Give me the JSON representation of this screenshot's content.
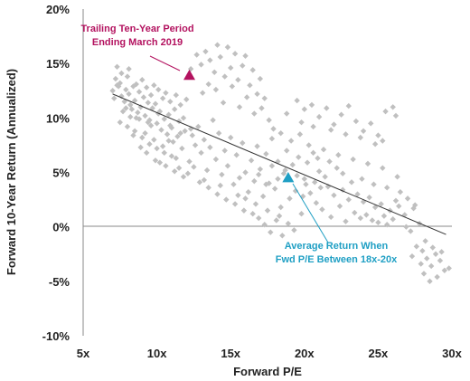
{
  "chart_data": {
    "type": "scatter",
    "xlabel": "Forward P/E",
    "ylabel": "Forward 10-Year Return (Annualized)",
    "xlim": [
      5,
      30
    ],
    "ylim": [
      -10,
      20
    ],
    "x_ticks": [
      5,
      10,
      15,
      20,
      25,
      30
    ],
    "x_tick_labels": [
      "5x",
      "10x",
      "15x",
      "20x",
      "25x",
      "30x"
    ],
    "y_ticks": [
      -10,
      -5,
      0,
      5,
      10,
      15,
      20
    ],
    "y_tick_labels": [
      "-10%",
      "-5%",
      "0%",
      "5%",
      "10%",
      "15%",
      "20%"
    ],
    "scatter_color": "#c0c0c0",
    "trendline": {
      "x": [
        7,
        29.6
      ],
      "y": [
        12.2,
        -0.7
      ],
      "color": "#333333"
    },
    "points": [
      [
        7.0,
        12.5
      ],
      [
        7.1,
        11.8
      ],
      [
        7.2,
        13.6
      ],
      [
        7.3,
        14.7
      ],
      [
        7.4,
        12.9
      ],
      [
        7.5,
        13.2
      ],
      [
        7.6,
        12.0
      ],
      [
        7.8,
        11.5
      ],
      [
        7.9,
        12.6
      ],
      [
        8.0,
        13.8
      ],
      [
        8.1,
        12.2
      ],
      [
        8.2,
        11.2
      ],
      [
        8.3,
        10.8
      ],
      [
        8.4,
        12.9
      ],
      [
        8.5,
        11.6
      ],
      [
        8.6,
        13.1
      ],
      [
        8.7,
        10.5
      ],
      [
        8.8,
        12.4
      ],
      [
        8.9,
        11.0
      ],
      [
        9.0,
        13.5
      ],
      [
        9.1,
        11.9
      ],
      [
        9.2,
        10.2
      ],
      [
        9.3,
        12.8
      ],
      [
        9.4,
        11.4
      ],
      [
        9.5,
        9.8
      ],
      [
        9.6,
        12.1
      ],
      [
        9.7,
        10.9
      ],
      [
        9.8,
        13.0
      ],
      [
        9.9,
        11.3
      ],
      [
        10.0,
        9.5
      ],
      [
        10.1,
        12.6
      ],
      [
        10.2,
        10.6
      ],
      [
        10.3,
        8.9
      ],
      [
        10.4,
        11.8
      ],
      [
        10.5,
        9.9
      ],
      [
        10.6,
        12.3
      ],
      [
        10.7,
        8.5
      ],
      [
        10.8,
        10.3
      ],
      [
        10.9,
        11.5
      ],
      [
        11.0,
        9.1
      ],
      [
        11.1,
        7.8
      ],
      [
        11.2,
        10.8
      ],
      [
        11.3,
        12.1
      ],
      [
        11.4,
        8.3
      ],
      [
        11.5,
        9.7
      ],
      [
        11.6,
        11.2
      ],
      [
        11.7,
        7.2
      ],
      [
        11.8,
        10.0
      ],
      [
        11.9,
        8.8
      ],
      [
        12.0,
        11.7
      ],
      [
        7.5,
        9.6
      ],
      [
        8.0,
        9.2
      ],
      [
        8.5,
        8.8
      ],
      [
        9.0,
        8.2
      ],
      [
        9.5,
        7.6
      ],
      [
        10.0,
        7.2
      ],
      [
        10.5,
        6.8
      ],
      [
        11.0,
        6.5
      ],
      [
        8.2,
        10.1
      ],
      [
        8.8,
        9.9
      ],
      [
        9.2,
        8.6
      ],
      [
        9.8,
        8.0
      ],
      [
        10.4,
        7.4
      ],
      [
        7.7,
        10.6
      ],
      [
        8.4,
        8.4
      ],
      [
        9.6,
        9.3
      ],
      [
        10.8,
        7.9
      ],
      [
        11.3,
        6.3
      ],
      [
        12.2,
        6.0
      ],
      [
        12.5,
        5.5
      ],
      [
        12.4,
        8.4
      ],
      [
        12.6,
        7.5
      ],
      [
        12.8,
        9.2
      ],
      [
        13.0,
        6.8
      ],
      [
        13.2,
        8.0
      ],
      [
        13.4,
        5.2
      ],
      [
        13.6,
        7.3
      ],
      [
        13.8,
        9.8
      ],
      [
        14.0,
        6.2
      ],
      [
        14.2,
        8.6
      ],
      [
        14.4,
        4.8
      ],
      [
        14.6,
        7.0
      ],
      [
        14.8,
        5.6
      ],
      [
        15.0,
        8.2
      ],
      [
        15.2,
        3.9
      ],
      [
        15.4,
        6.6
      ],
      [
        15.6,
        4.5
      ],
      [
        15.8,
        7.7
      ],
      [
        16.0,
        5.0
      ],
      [
        16.2,
        3.2
      ],
      [
        12.3,
        14.5
      ],
      [
        12.7,
        15.8
      ],
      [
        13.0,
        14.9
      ],
      [
        13.3,
        16.1
      ],
      [
        13.6,
        15.3
      ],
      [
        13.9,
        14.2
      ],
      [
        14.1,
        16.7
      ],
      [
        14.3,
        15.6
      ],
      [
        14.6,
        13.8
      ],
      [
        14.8,
        16.5
      ],
      [
        15.0,
        14.6
      ],
      [
        15.3,
        15.9
      ],
      [
        15.5,
        13.5
      ],
      [
        15.8,
        14.8
      ],
      [
        16.0,
        15.7
      ],
      [
        16.3,
        13.0
      ],
      [
        16.5,
        14.4
      ],
      [
        16.8,
        12.2
      ],
      [
        17.0,
        13.6
      ],
      [
        17.3,
        11.8
      ],
      [
        13.1,
        12.3
      ],
      [
        13.5,
        13.1
      ],
      [
        14.0,
        12.6
      ],
      [
        14.5,
        11.4
      ],
      [
        15.1,
        12.9
      ],
      [
        15.6,
        11.0
      ],
      [
        16.1,
        11.9
      ],
      [
        16.6,
        10.4
      ],
      [
        17.1,
        10.9
      ],
      [
        17.6,
        9.8
      ],
      [
        16.4,
        6.1
      ],
      [
        16.6,
        4.2
      ],
      [
        16.8,
        7.4
      ],
      [
        17.0,
        5.3
      ],
      [
        17.2,
        2.8
      ],
      [
        17.4,
        6.7
      ],
      [
        17.6,
        4.0
      ],
      [
        17.8,
        8.1
      ],
      [
        18.0,
        3.5
      ],
      [
        18.2,
        6.0
      ],
      [
        18.4,
        1.8
      ],
      [
        18.6,
        4.9
      ],
      [
        18.8,
        7.0
      ],
      [
        19.0,
        2.6
      ],
      [
        19.2,
        5.7
      ],
      [
        19.4,
        3.3
      ],
      [
        19.6,
        6.4
      ],
      [
        19.8,
        1.2
      ],
      [
        20.0,
        4.4
      ],
      [
        20.2,
        5.9
      ],
      [
        16.9,
        0.8
      ],
      [
        17.3,
        0.2
      ],
      [
        17.7,
        -0.5
      ],
      [
        18.1,
        0.6
      ],
      [
        18.5,
        -0.8
      ],
      [
        18.9,
        0.3
      ],
      [
        19.3,
        -0.3
      ],
      [
        17.5,
        1.5
      ],
      [
        18.3,
        1.0
      ],
      [
        16.7,
        2.1
      ],
      [
        20.4,
        3.1
      ],
      [
        20.6,
        6.8
      ],
      [
        20.8,
        2.2
      ],
      [
        21.0,
        5.1
      ],
      [
        21.2,
        1.6
      ],
      [
        21.4,
        4.6
      ],
      [
        21.6,
        3.7
      ],
      [
        21.8,
        0.9
      ],
      [
        22.0,
        2.9
      ],
      [
        22.2,
        5.4
      ],
      [
        22.4,
        1.9
      ],
      [
        22.6,
        3.4
      ],
      [
        22.8,
        0.5
      ],
      [
        23.0,
        2.5
      ],
      [
        23.2,
        4.1
      ],
      [
        23.4,
        1.3
      ],
      [
        23.6,
        3.0
      ],
      [
        23.8,
        0.8
      ],
      [
        24.0,
        2.3
      ],
      [
        24.2,
        1.1
      ],
      [
        24.4,
        2.7
      ],
      [
        24.6,
        0.6
      ],
      [
        24.8,
        1.8
      ],
      [
        25.0,
        0.4
      ],
      [
        25.2,
        2.1
      ],
      [
        25.4,
        1.0
      ],
      [
        25.6,
        0.2
      ],
      [
        25.8,
        1.5
      ],
      [
        26.0,
        0.7
      ],
      [
        26.2,
        2.4
      ],
      [
        19.5,
        11.6
      ],
      [
        20.0,
        10.8
      ],
      [
        20.5,
        11.2
      ],
      [
        21.0,
        10.1
      ],
      [
        21.5,
        10.9
      ],
      [
        22.0,
        9.4
      ],
      [
        22.5,
        10.3
      ],
      [
        23.0,
        11.1
      ],
      [
        23.5,
        9.7
      ],
      [
        24.0,
        8.8
      ],
      [
        24.5,
        9.5
      ],
      [
        25.0,
        8.4
      ],
      [
        25.5,
        10.6
      ],
      [
        26.0,
        11.0
      ],
      [
        26.2,
        10.2
      ],
      [
        24.8,
        7.6
      ],
      [
        25.3,
        7.9
      ],
      [
        23.8,
        8.2
      ],
      [
        22.8,
        8.5
      ],
      [
        21.8,
        8.9
      ],
      [
        20.6,
        9.2
      ],
      [
        19.8,
        9.6
      ],
      [
        18.8,
        10.4
      ],
      [
        18.4,
        8.6
      ],
      [
        17.9,
        9.0
      ],
      [
        19.1,
        7.9
      ],
      [
        20.3,
        7.5
      ],
      [
        21.3,
        7.1
      ],
      [
        22.3,
        6.6
      ],
      [
        23.3,
        6.2
      ],
      [
        24.3,
        5.8
      ],
      [
        25.3,
        5.4
      ],
      [
        26.3,
        4.6
      ],
      [
        22.6,
        4.9
      ],
      [
        23.9,
        4.4
      ],
      [
        24.7,
        3.9
      ],
      [
        25.6,
        3.6
      ],
      [
        21.7,
        6.0
      ],
      [
        20.9,
        6.3
      ],
      [
        19.7,
        8.5
      ],
      [
        26.5,
        3.2
      ],
      [
        27.0,
        2.6
      ],
      [
        27.4,
        1.7
      ],
      [
        27.8,
        0.3
      ],
      [
        26.8,
        1.1
      ],
      [
        27.2,
        -0.4
      ],
      [
        27.6,
        -1.8
      ],
      [
        28.0,
        -2.2
      ],
      [
        28.3,
        -2.9
      ],
      [
        28.6,
        -3.6
      ],
      [
        28.9,
        -2.5
      ],
      [
        29.2,
        -3.1
      ],
      [
        29.5,
        -4.0
      ],
      [
        29.8,
        -3.8
      ],
      [
        28.1,
        -4.3
      ],
      [
        28.5,
        -5.0
      ],
      [
        29.0,
        -4.6
      ],
      [
        27.9,
        -3.4
      ],
      [
        28.7,
        -1.9
      ],
      [
        29.3,
        -2.3
      ],
      [
        27.5,
        2.0
      ],
      [
        26.4,
        1.9
      ],
      [
        26.9,
        0.0
      ],
      [
        27.3,
        -2.7
      ],
      [
        28.2,
        -1.3
      ],
      [
        9.3,
        6.8
      ],
      [
        9.9,
        6.1
      ],
      [
        10.6,
        5.6
      ],
      [
        11.2,
        5.1
      ],
      [
        11.8,
        4.6
      ],
      [
        8.9,
        7.3
      ],
      [
        10.2,
        5.9
      ],
      [
        11.5,
        5.4
      ],
      [
        12.1,
        4.9
      ],
      [
        12.9,
        4.1
      ],
      [
        13.5,
        3.6
      ],
      [
        14.1,
        3.0
      ],
      [
        14.7,
        2.5
      ],
      [
        15.3,
        2.1
      ],
      [
        15.9,
        1.5
      ],
      [
        16.5,
        1.2
      ],
      [
        13.2,
        4.3
      ],
      [
        14.3,
        3.8
      ],
      [
        15.5,
        2.9
      ],
      [
        16.0,
        2.6
      ],
      [
        7.3,
        13.0
      ],
      [
        7.6,
        14.1
      ],
      [
        8.1,
        14.5
      ],
      [
        7.9,
        10.9
      ],
      [
        8.6,
        10.0
      ],
      [
        9.4,
        9.6
      ],
      [
        10.1,
        10.4
      ],
      [
        10.9,
        9.3
      ],
      [
        11.6,
        8.6
      ],
      [
        12.3,
        9.0
      ],
      [
        17.8,
        5.6
      ],
      [
        18.7,
        5.2
      ],
      [
        19.5,
        4.7
      ],
      [
        20.1,
        3.9
      ],
      [
        20.7,
        4.1
      ],
      [
        21.1,
        3.6
      ],
      [
        18.2,
        4.4
      ],
      [
        17.4,
        3.9
      ],
      [
        16.9,
        4.8
      ],
      [
        19.9,
        2.8
      ]
    ],
    "highlights": [
      {
        "label_lines": [
          "Trailing Ten-Year Period",
          "Ending March 2019"
        ],
        "x": 12.2,
        "y": 13.9,
        "color": "#b3125f"
      },
      {
        "label_lines": [
          "Average Return When",
          "Fwd P/E Between 18x-20x"
        ],
        "x": 18.9,
        "y": 4.5,
        "color": "#1f9fc4"
      }
    ]
  }
}
